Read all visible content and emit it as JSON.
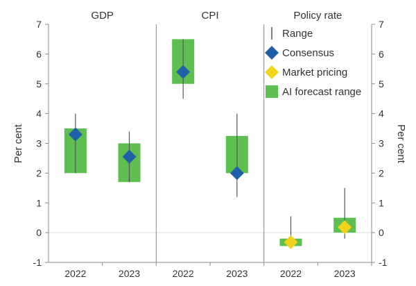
{
  "chart_data": {
    "type": "range",
    "ylabel_left": "Per cent",
    "ylabel_right": "Per cent",
    "ylim": [
      -1,
      7
    ],
    "yticks": [
      "-1",
      "0",
      "1",
      "2",
      "3",
      "4",
      "5",
      "6",
      "7"
    ],
    "legend": {
      "position": "top-right",
      "items": [
        {
          "key": "range",
          "label": "Range"
        },
        {
          "key": "consensus",
          "label": "Consensus"
        },
        {
          "key": "market",
          "label": "Market pricing"
        },
        {
          "key": "ai",
          "label": "AI forecast range"
        }
      ]
    },
    "colors": {
      "range": "#555555",
      "consensus": "#1f5fa8",
      "market": "#f2d31b",
      "ai": "#5cbf4f",
      "axis": "#888888",
      "grid": "#dddddd",
      "text": "#333333"
    },
    "panels": [
      {
        "title": "GDP",
        "categories": [
          "2022",
          "2023"
        ],
        "marker": "consensus",
        "points": [
          {
            "range": [
              2.0,
              4.0
            ],
            "ai": [
              2.0,
              3.5
            ],
            "center": 3.3
          },
          {
            "range": [
              1.7,
              3.4
            ],
            "ai": [
              1.7,
              3.0
            ],
            "center": 2.55
          }
        ]
      },
      {
        "title": "CPI",
        "categories": [
          "2022",
          "2023"
        ],
        "marker": "consensus",
        "points": [
          {
            "range": [
              4.5,
              6.5
            ],
            "ai": [
              5.0,
              6.5
            ],
            "center": 5.4
          },
          {
            "range": [
              1.2,
              4.0
            ],
            "ai": [
              2.0,
              3.25
            ],
            "center": 2.0
          }
        ]
      },
      {
        "title": "Policy rate",
        "categories": [
          "2022",
          "2023"
        ],
        "marker": "market",
        "points": [
          {
            "range": [
              -0.5,
              0.55
            ],
            "ai": [
              -0.45,
              -0.2
            ],
            "center": -0.32
          },
          {
            "range": [
              -0.2,
              1.5
            ],
            "ai": [
              0.0,
              0.5
            ],
            "center": 0.18
          }
        ]
      }
    ]
  }
}
